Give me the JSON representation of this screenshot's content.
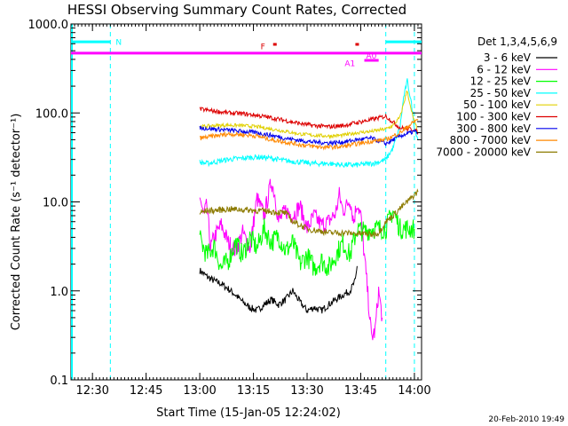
{
  "chart_data": {
    "type": "line",
    "title": "HESSI Observing Summary Count Rates, Corrected",
    "xlabel": "Start Time (15-Jan-05 12:24:02)",
    "ylabel": "Corrected Count Rate (s⁻¹ detector⁻¹)",
    "yscale": "log",
    "ylim": [
      0.1,
      1000
    ],
    "xlim_minutes": [
      0,
      98
    ],
    "x_ticks": [
      {
        "label": "12:30",
        "t": 6
      },
      {
        "label": "12:45",
        "t": 21
      },
      {
        "label": "13:00",
        "t": 36
      },
      {
        "label": "13:15",
        "t": 51
      },
      {
        "label": "13:30",
        "t": 66
      },
      {
        "label": "13:45",
        "t": 81
      },
      {
        "label": "14:00",
        "t": 96
      }
    ],
    "y_ticks": [
      {
        "label": "0.1",
        "v": 0.1
      },
      {
        "label": "1.0",
        "v": 1
      },
      {
        "label": "10.0",
        "v": 10
      },
      {
        "label": "100.0",
        "v": 100
      },
      {
        "label": "1000.0",
        "v": 1000
      }
    ],
    "legend": {
      "placement": "right",
      "header": "Det 1,3,4,5,6,9"
    },
    "series": [
      {
        "name": "3 - 6 keV",
        "color": "#000000",
        "x": [
          36,
          38,
          40,
          42,
          44,
          46,
          48,
          50,
          52,
          54,
          56,
          58,
          60,
          62,
          64,
          66,
          68,
          70,
          72,
          74,
          76,
          78,
          79.5,
          80
        ],
        "y": [
          1.7,
          1.45,
          1.3,
          1.2,
          1.05,
          0.9,
          0.75,
          0.65,
          0.6,
          0.7,
          0.8,
          0.7,
          0.8,
          1.0,
          0.75,
          0.6,
          0.65,
          0.6,
          0.7,
          0.8,
          0.9,
          1.0,
          1.3,
          1.9
        ]
      },
      {
        "name": "6 - 12 keV",
        "color": "#ff00ff",
        "x": [
          36,
          37,
          38,
          39,
          40,
          42,
          44,
          46,
          48,
          50,
          52,
          54,
          56,
          57,
          58,
          60,
          62,
          64,
          66,
          68,
          70,
          72,
          74,
          75,
          76,
          77,
          78,
          79,
          80,
          81,
          82,
          83,
          84,
          85,
          86,
          87
        ],
        "y": [
          12,
          7,
          9,
          3,
          4,
          5.5,
          3.5,
          2.8,
          4.5,
          3,
          11,
          7,
          17,
          12,
          6,
          8,
          7,
          9,
          5,
          7,
          5.5,
          6,
          7.5,
          12,
          8,
          9,
          11,
          6,
          10,
          7,
          2.5,
          0.9,
          0.3,
          0.35,
          1.0,
          0.5
        ]
      },
      {
        "name": "12 - 25 keV",
        "color": "#00ff00",
        "x": [
          36,
          38,
          40,
          42,
          44,
          46,
          48,
          50,
          52,
          54,
          56,
          58,
          60,
          62,
          64,
          66,
          68,
          70,
          72,
          74,
          76,
          78,
          80,
          82,
          84,
          86,
          88,
          90,
          92,
          94,
          96
        ],
        "y": [
          3.8,
          2.5,
          3.2,
          1.8,
          2.2,
          3.5,
          2.5,
          4,
          3,
          5,
          3.5,
          4.2,
          2.8,
          3.5,
          2,
          2.5,
          1.8,
          2.2,
          1.8,
          2.5,
          3.5,
          2.5,
          5,
          4.6,
          5,
          5,
          5,
          8,
          5,
          5,
          5
        ]
      },
      {
        "name": "25 - 50 keV",
        "color": "#00ffff",
        "x": [
          36,
          38,
          40,
          44,
          48,
          52,
          56,
          60,
          64,
          68,
          72,
          76,
          80,
          84,
          86,
          88,
          90,
          92,
          93,
          94,
          95,
          96,
          97
        ],
        "y": [
          28,
          27,
          28,
          30,
          31,
          32,
          31,
          29,
          28,
          27,
          27,
          26,
          26,
          27,
          28,
          30,
          40,
          70,
          150,
          230,
          140,
          70,
          50
        ]
      },
      {
        "name": "50 - 100 keV",
        "color": "#e0d000",
        "x": [
          36,
          40,
          44,
          48,
          52,
          56,
          60,
          64,
          68,
          72,
          76,
          80,
          84,
          88,
          90,
          92,
          94,
          95,
          96,
          97
        ],
        "y": [
          70,
          72,
          73,
          72,
          70,
          66,
          62,
          58,
          56,
          55,
          56,
          60,
          62,
          66,
          72,
          90,
          180,
          110,
          80,
          62
        ]
      },
      {
        "name": "100 - 300 keV",
        "color": "#dd0000",
        "x": [
          36,
          40,
          44,
          48,
          52,
          56,
          60,
          64,
          68,
          72,
          76,
          80,
          84,
          88,
          92,
          96,
          97
        ],
        "y": [
          110,
          105,
          100,
          98,
          94,
          88,
          82,
          76,
          72,
          70,
          72,
          78,
          84,
          92,
          68,
          65,
          60
        ]
      },
      {
        "name": "300 - 800 keV",
        "color": "#0000ee",
        "x": [
          36,
          40,
          44,
          48,
          52,
          56,
          60,
          64,
          68,
          72,
          76,
          80,
          84,
          88,
          92,
          96,
          97
        ],
        "y": [
          68,
          66,
          64,
          62,
          60,
          56,
          52,
          49,
          47,
          46,
          47,
          50,
          52,
          45,
          55,
          62,
          60
        ]
      },
      {
        "name": "800 - 7000 keV",
        "color": "#ff8800",
        "x": [
          36,
          40,
          44,
          48,
          52,
          56,
          60,
          64,
          68,
          72,
          76,
          80,
          84,
          88,
          92,
          96,
          97
        ],
        "y": [
          52,
          55,
          58,
          57,
          55,
          50,
          47,
          44,
          42,
          41,
          42,
          45,
          48,
          50,
          60,
          80,
          85
        ]
      },
      {
        "name": "7000 - 20000 keV",
        "color": "#8c7a00",
        "x": [
          36,
          38,
          40,
          44,
          48,
          52,
          56,
          60,
          62,
          64,
          66,
          68,
          70,
          72,
          76,
          80,
          82,
          84,
          86,
          88,
          90,
          92,
          94,
          96,
          97
        ],
        "y": [
          7.5,
          8,
          8,
          8.3,
          8.2,
          8.0,
          7.8,
          7.5,
          6,
          5.5,
          5,
          4.8,
          4.7,
          4.5,
          4.5,
          4.4,
          4.4,
          4.3,
          4.5,
          6,
          7,
          8.5,
          10,
          12,
          13
        ]
      }
    ],
    "overlays": [
      {
        "label": "N",
        "kind": "night",
        "color": "#00ffff",
        "segments": [
          [
            0,
            11
          ],
          [
            88,
            98
          ]
        ],
        "bar_y": 630
      },
      {
        "label": "F",
        "kind": "flare",
        "color": "#dd0000",
        "points": [
          {
            "t": 57,
            "v": 590
          },
          {
            "t": 80,
            "v": 590
          }
        ]
      },
      {
        "label": "A1",
        "kind": "attenuator",
        "color": "#ff00ff",
        "segments": [
          [
            82,
            86
          ]
        ],
        "bar_y": 390
      },
      {
        "label": "A0",
        "kind": "attenuator",
        "color": "#ff00ff",
        "segments": [
          [
            0,
            98
          ]
        ],
        "bar_y": 470
      }
    ],
    "vlines_minutes": [
      11,
      88,
      96
    ],
    "grid": false
  },
  "footer": {
    "timestamp": "20-Feb-2010 19:49"
  }
}
